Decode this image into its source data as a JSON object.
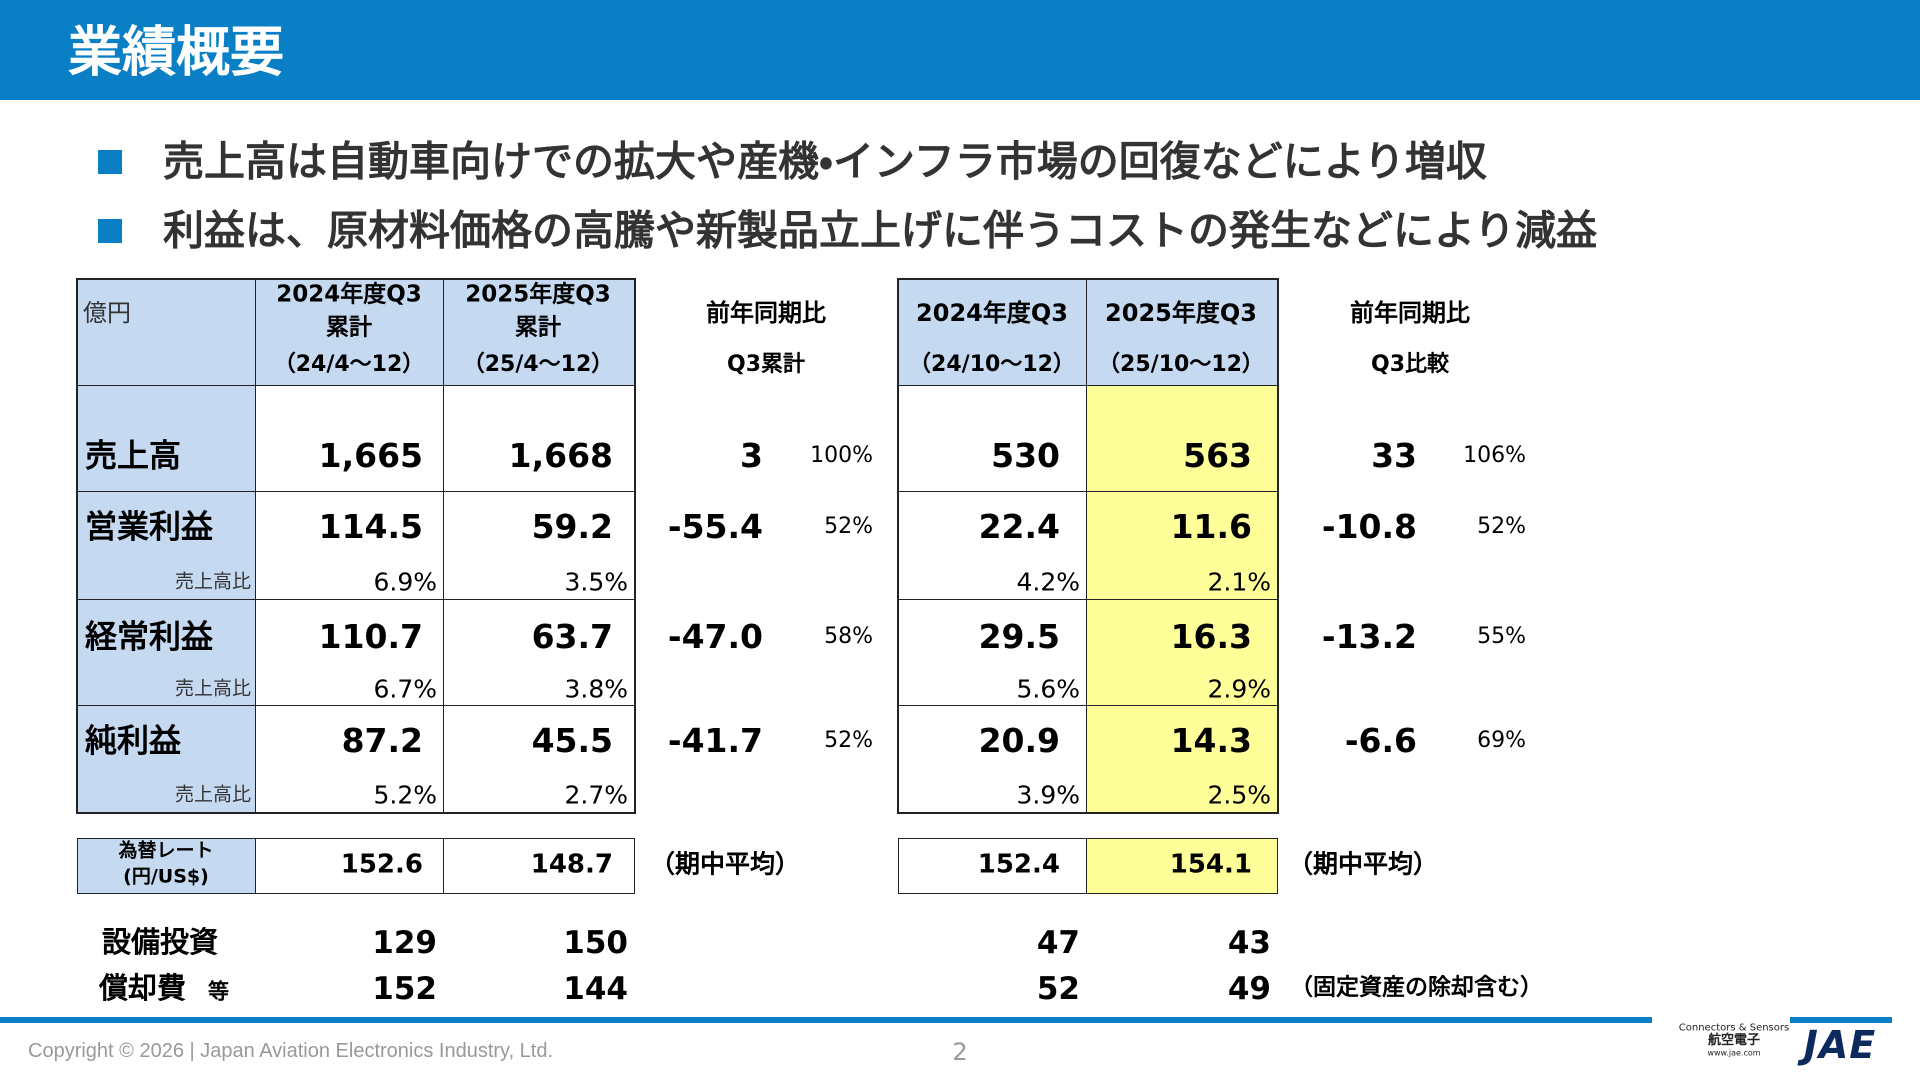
{
  "header": {
    "title": "業績概要"
  },
  "bullets": [
    "売上高は自動車向けでの拡大や産機・インフラ市場の回復などにより増収",
    "利益は、原材料価格の高騰や新製品立上げに伴うコストの発生などにより減益"
  ],
  "table": {
    "unit": "億円",
    "columns": [
      {
        "title": "2024年度Q3",
        "sub": "累計",
        "period": "（24/4～12）"
      },
      {
        "title": "2025年度Q3",
        "sub": "累計",
        "period": "（25/4～12）"
      },
      {
        "title": "前年同期比",
        "period": "Q3累計"
      },
      {
        "title": "2024年度Q3",
        "period": "（24/10～12）"
      },
      {
        "title": "2025年度Q3",
        "period": "（25/10～12）"
      },
      {
        "title": "前年同期比",
        "period": "Q3比較"
      }
    ],
    "rows": [
      {
        "label": "売上高",
        "values": [
          "1,665",
          "1,668",
          "3",
          "100%",
          "530",
          "563",
          "33",
          "106%"
        ]
      },
      {
        "label": "営業利益",
        "values": [
          "114.5",
          "59.2",
          "-55.4",
          "52%",
          "22.4",
          "11.6",
          "-10.8",
          "52%"
        ],
        "ratio_label": "売上高比",
        "ratios": [
          "6.9%",
          "3.5%",
          "4.2%",
          "2.1%"
        ]
      },
      {
        "label": "経常利益",
        "values": [
          "110.7",
          "63.7",
          "-47.0",
          "58%",
          "29.5",
          "16.3",
          "-13.2",
          "55%"
        ],
        "ratio_label": "売上高比",
        "ratios": [
          "6.7%",
          "3.8%",
          "5.6%",
          "2.9%"
        ]
      },
      {
        "label": "純利益",
        "values": [
          "87.2",
          "45.5",
          "-41.7",
          "52%",
          "20.9",
          "14.3",
          "-6.6",
          "69%"
        ],
        "ratio_label": "売上高比",
        "ratios": [
          "5.2%",
          "2.7%",
          "3.9%",
          "2.5%"
        ]
      }
    ],
    "fx": {
      "label": "為替レート",
      "unit": "(円/US$)",
      "values": [
        "152.6",
        "148.7",
        "152.4",
        "154.1"
      ],
      "note": "（期中平均）"
    },
    "capex": {
      "label": "設備投資",
      "values": [
        "129",
        "150",
        "47",
        "43"
      ]
    },
    "depreciation": {
      "label": "償却費",
      "suffix": "等",
      "values": [
        "152",
        "144",
        "52",
        "49"
      ],
      "note": "（固定資産の除却含む）"
    }
  },
  "footer": {
    "copyright": "Copyright © 2026 | Japan Aviation Electronics Industry, Ltd.",
    "page": "2",
    "logo": {
      "tagline": "Connectors & Sensors",
      "name": "航空電子",
      "url": "www.jae.com",
      "mark": "JAE"
    }
  }
}
